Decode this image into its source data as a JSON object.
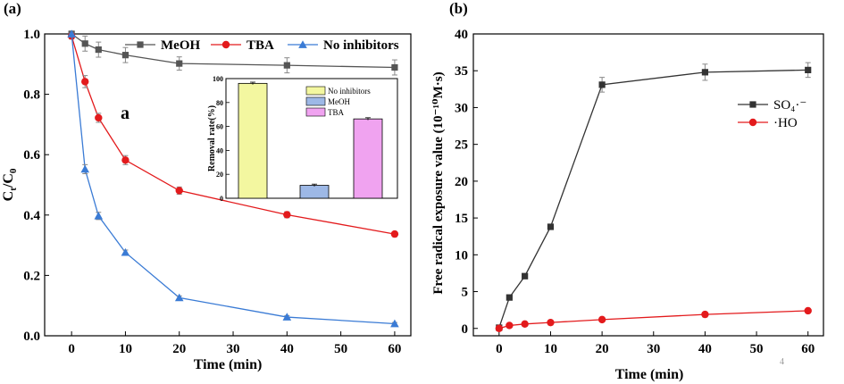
{
  "figure": {
    "panel_a_label": "(a)",
    "panel_b_label": "(b)",
    "page_mark": "4"
  },
  "chart_data": [
    {
      "id": "panel-a",
      "type": "line",
      "title": "",
      "xlabel": "Time (min)",
      "ylabel_main": "C",
      "ylabel_sub1": "t",
      "ylabel_slash": "/C",
      "ylabel_sub2": "0",
      "xlim": [
        -5,
        63
      ],
      "ylim": [
        0,
        1.0
      ],
      "xticks": [
        0,
        10,
        20,
        30,
        40,
        50,
        60
      ],
      "yticks": [
        0.0,
        0.2,
        0.4,
        0.6,
        0.8,
        1.0
      ],
      "annotation": "a",
      "legend_position": "top",
      "series": [
        {
          "name": "MeOH",
          "color": "#555555",
          "marker": "square",
          "x": [
            0,
            2.5,
            5,
            10,
            20,
            40,
            60
          ],
          "y": [
            1.0,
            0.968,
            0.948,
            0.93,
            0.902,
            0.896,
            0.889
          ],
          "err": [
            0.01,
            0.025,
            0.025,
            0.025,
            0.022,
            0.025,
            0.025
          ]
        },
        {
          "name": "TBA",
          "color": "#e31a1c",
          "marker": "circle",
          "x": [
            0,
            2.5,
            5,
            10,
            20,
            40,
            60
          ],
          "y": [
            0.993,
            0.842,
            0.722,
            0.582,
            0.481,
            0.401,
            0.337
          ],
          "err": [
            0.01,
            0.02,
            0.015,
            0.015,
            0.012,
            0.01,
            0.008
          ]
        },
        {
          "name": "No inhibitors",
          "color": "#3a7bd5",
          "marker": "triangle",
          "x": [
            0,
            2.5,
            5,
            10,
            20,
            40,
            60
          ],
          "y": [
            1.0,
            0.552,
            0.397,
            0.276,
            0.126,
            0.062,
            0.04
          ],
          "err": [
            0.01,
            0.015,
            0.012,
            0.008,
            0.006,
            0.005,
            0.004
          ]
        }
      ]
    },
    {
      "id": "panel-a-inset",
      "type": "bar",
      "ylabel": "Removal rate(%)",
      "ylim": [
        0,
        100
      ],
      "yticks": [
        0,
        20,
        40,
        60,
        80,
        100
      ],
      "categories": [
        "No inhibitors",
        "MeOH",
        "TBA"
      ],
      "values": [
        96,
        10.8,
        66.3
      ],
      "err": [
        1.0,
        1.0,
        1.0
      ],
      "colors": [
        "#f3f7a0",
        "#9db8e6",
        "#f0a3f0"
      ]
    },
    {
      "id": "panel-b",
      "type": "line",
      "xlabel": "Time (min)",
      "ylabel": "Free radical exposure value (10⁻¹⁰M·s)",
      "xlim": [
        -5,
        63
      ],
      "ylim": [
        -1,
        40
      ],
      "xticks": [
        0,
        10,
        20,
        30,
        40,
        50,
        60
      ],
      "yticks": [
        0,
        5,
        10,
        15,
        20,
        25,
        30,
        35,
        40
      ],
      "legend_position": "right",
      "series": [
        {
          "name": "SO₄·⁻",
          "color": "#333333",
          "marker": "square",
          "x": [
            0,
            2,
            5,
            10,
            20,
            40,
            60
          ],
          "y": [
            0.1,
            4.2,
            7.1,
            13.8,
            33.1,
            34.8,
            35.1
          ],
          "err": [
            0,
            0,
            0,
            0,
            1.0,
            1.1,
            1.0
          ]
        },
        {
          "name": "·HO",
          "color": "#e31a1c",
          "marker": "circle",
          "x": [
            0,
            2,
            5,
            10,
            20,
            40,
            60
          ],
          "y": [
            0,
            0.4,
            0.6,
            0.8,
            1.2,
            1.9,
            2.4
          ],
          "err": [
            0,
            0,
            0,
            0,
            0,
            0,
            0
          ]
        }
      ]
    }
  ]
}
